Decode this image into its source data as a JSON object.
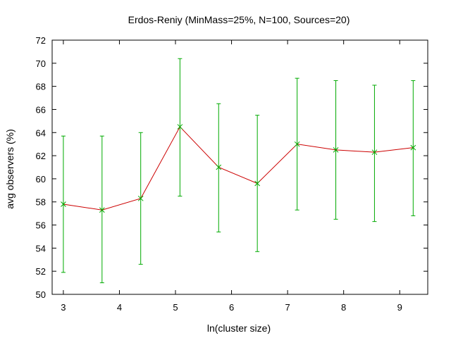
{
  "chart_data": {
    "type": "line",
    "title": "Erdos-Reniy (MinMass=25%, N=100, Sources=20)",
    "xlabel": "ln(cluster size)",
    "ylabel": "avg observers (%)",
    "xlim": [
      2.8,
      9.5
    ],
    "ylim": [
      50,
      72
    ],
    "xticks": [
      3,
      4,
      5,
      6,
      7,
      8,
      9
    ],
    "yticks": [
      50,
      52,
      54,
      56,
      58,
      60,
      62,
      64,
      66,
      68,
      70,
      72
    ],
    "grid": false,
    "legend": "none",
    "line_color": "#cc0000",
    "marker_color": "#00aa00",
    "errorbar_color": "#00aa00",
    "series": [
      {
        "x": [
          3.0,
          3.69,
          4.38,
          5.08,
          5.77,
          6.46,
          7.17,
          7.86,
          8.55,
          9.24
        ],
        "y": [
          57.8,
          57.3,
          58.3,
          64.5,
          61.0,
          59.6,
          63.0,
          62.5,
          62.3,
          62.7
        ],
        "err_low": [
          51.9,
          51.0,
          52.6,
          58.5,
          55.4,
          53.7,
          57.3,
          56.5,
          56.3,
          56.8
        ],
        "err_high": [
          63.7,
          63.7,
          64.0,
          70.4,
          66.5,
          65.5,
          68.7,
          68.5,
          68.1,
          68.5
        ]
      }
    ]
  }
}
